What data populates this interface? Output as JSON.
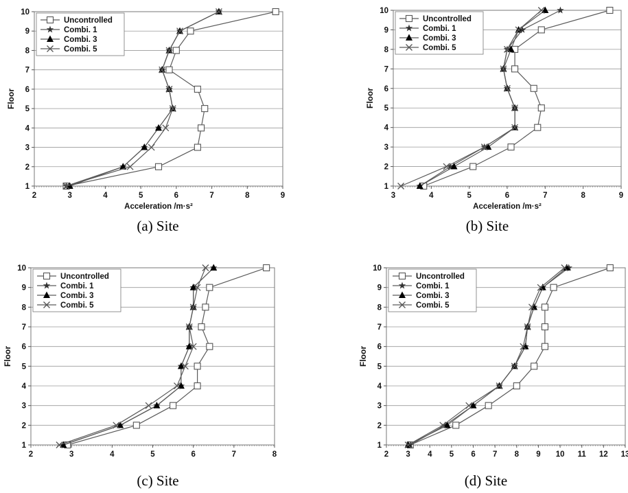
{
  "figure": {
    "captions": [
      "(a) Site",
      "(b) Site",
      "(c) Site",
      "(d) Site"
    ]
  },
  "chart_data": [
    {
      "type": "line",
      "xlabel": "Acceleration /m·s²",
      "ylabel": "Floor",
      "xlim": [
        2,
        9
      ],
      "ylim": [
        1,
        10
      ],
      "x_ticks": [
        2,
        3,
        4,
        5,
        6,
        7,
        8,
        9
      ],
      "y_ticks": [
        1,
        2,
        3,
        4,
        5,
        6,
        7,
        8,
        9,
        10
      ],
      "grid": "horizontal",
      "legend_position": "top-left",
      "series": [
        {
          "name": "Uncontrolled",
          "marker": "square",
          "x": [
            2.9,
            5.5,
            6.6,
            6.7,
            6.8,
            6.6,
            5.8,
            6.0,
            6.4,
            8.8
          ],
          "y": [
            1,
            2,
            3,
            4,
            5,
            6,
            7,
            8,
            9,
            10
          ]
        },
        {
          "name": "Combi. 1",
          "marker": "star",
          "x": [
            2.9,
            4.5,
            5.1,
            5.5,
            5.9,
            5.8,
            5.6,
            5.8,
            6.1,
            7.2
          ],
          "y": [
            1,
            2,
            3,
            4,
            5,
            6,
            7,
            8,
            9,
            10
          ]
        },
        {
          "name": "Combi. 3",
          "marker": "triangle",
          "x": [
            3.0,
            4.5,
            5.1,
            5.5,
            5.9,
            5.8,
            5.6,
            5.8,
            6.1,
            7.2
          ],
          "y": [
            1,
            2,
            3,
            4,
            5,
            6,
            7,
            8,
            9,
            10
          ]
        },
        {
          "name": "Combi. 5",
          "marker": "x",
          "x": [
            2.9,
            4.7,
            5.3,
            5.7,
            5.9,
            5.8,
            5.6,
            5.8,
            6.1,
            7.2
          ],
          "y": [
            1,
            2,
            3,
            4,
            5,
            6,
            7,
            8,
            9,
            10
          ]
        }
      ]
    },
    {
      "type": "line",
      "xlabel": "Acceleration /m·s²",
      "ylabel": "Floor",
      "xlim": [
        3,
        9
      ],
      "ylim": [
        1,
        10
      ],
      "x_ticks": [
        3,
        4,
        5,
        6,
        7,
        8,
        9
      ],
      "y_ticks": [
        1,
        2,
        3,
        4,
        5,
        6,
        7,
        8,
        9,
        10
      ],
      "grid": "horizontal",
      "legend_position": "top-left",
      "series": [
        {
          "name": "Uncontrolled",
          "marker": "square",
          "x": [
            3.8,
            5.1,
            6.1,
            6.8,
            6.9,
            6.7,
            6.2,
            6.2,
            6.9,
            8.7
          ],
          "y": [
            1,
            2,
            3,
            4,
            5,
            6,
            7,
            8,
            9,
            10
          ]
        },
        {
          "name": "Combi. 1",
          "marker": "star",
          "x": [
            3.7,
            4.5,
            5.4,
            6.2,
            6.2,
            6.0,
            5.9,
            6.0,
            6.4,
            7.4
          ],
          "y": [
            1,
            2,
            3,
            4,
            5,
            6,
            7,
            8,
            9,
            10
          ]
        },
        {
          "name": "Combi. 3",
          "marker": "triangle",
          "x": [
            3.7,
            4.6,
            5.5,
            6.2,
            6.2,
            6.0,
            5.9,
            6.1,
            6.3,
            7.0
          ],
          "y": [
            1,
            2,
            3,
            4,
            5,
            6,
            7,
            8,
            9,
            10
          ]
        },
        {
          "name": "Combi. 5",
          "marker": "x",
          "x": [
            3.2,
            4.4,
            5.4,
            6.2,
            6.2,
            6.0,
            5.9,
            6.0,
            6.3,
            6.9
          ],
          "y": [
            1,
            2,
            3,
            4,
            5,
            6,
            7,
            8,
            9,
            10
          ]
        }
      ]
    },
    {
      "type": "line",
      "xlabel": "Acceleration /m·s²",
      "ylabel": "Floor",
      "xlim": [
        2,
        8
      ],
      "ylim": [
        1,
        10
      ],
      "x_ticks": [
        2,
        3,
        4,
        5,
        6,
        7,
        8
      ],
      "y_ticks": [
        1,
        2,
        3,
        4,
        5,
        6,
        7,
        8,
        9,
        10
      ],
      "grid": "horizontal",
      "legend_position": "top-left",
      "series": [
        {
          "name": "Uncontrolled",
          "marker": "square",
          "x": [
            2.9,
            4.6,
            5.5,
            6.1,
            6.1,
            6.4,
            6.2,
            6.3,
            6.4,
            7.8
          ],
          "y": [
            1,
            2,
            3,
            4,
            5,
            6,
            7,
            8,
            9,
            10
          ]
        },
        {
          "name": "Combi. 1",
          "marker": "star",
          "x": [
            2.8,
            4.2,
            5.1,
            5.7,
            5.7,
            5.9,
            5.9,
            6.0,
            6.0,
            6.5
          ],
          "y": [
            1,
            2,
            3,
            4,
            5,
            6,
            7,
            8,
            9,
            10
          ]
        },
        {
          "name": "Combi. 3",
          "marker": "triangle",
          "x": [
            2.8,
            4.2,
            5.1,
            5.7,
            5.7,
            5.9,
            5.9,
            6.0,
            6.0,
            6.5
          ],
          "y": [
            1,
            2,
            3,
            4,
            5,
            6,
            7,
            8,
            9,
            10
          ]
        },
        {
          "name": "Combi. 5",
          "marker": "x",
          "x": [
            2.7,
            4.1,
            4.9,
            5.6,
            5.8,
            6.0,
            5.9,
            6.0,
            6.1,
            6.3
          ],
          "y": [
            1,
            2,
            3,
            4,
            5,
            6,
            7,
            8,
            9,
            10
          ]
        }
      ]
    },
    {
      "type": "line",
      "xlabel": "Acceleration /m·s²",
      "ylabel": "Floor",
      "xlim": [
        2,
        13
      ],
      "ylim": [
        1,
        10
      ],
      "x_ticks": [
        2,
        3,
        4,
        5,
        6,
        7,
        8,
        9,
        10,
        11,
        12,
        13
      ],
      "y_ticks": [
        1,
        2,
        3,
        4,
        5,
        6,
        7,
        8,
        9,
        10
      ],
      "grid": "horizontal",
      "legend_position": "top-left",
      "series": [
        {
          "name": "Uncontrolled",
          "marker": "square",
          "x": [
            3.1,
            5.2,
            6.7,
            8.0,
            8.8,
            9.3,
            9.3,
            9.3,
            9.7,
            12.3
          ],
          "y": [
            1,
            2,
            3,
            4,
            5,
            6,
            7,
            8,
            9,
            10
          ]
        },
        {
          "name": "Combi. 1",
          "marker": "star",
          "x": [
            3.1,
            4.7,
            6.0,
            7.2,
            7.9,
            8.4,
            8.5,
            8.8,
            9.2,
            10.4
          ],
          "y": [
            1,
            2,
            3,
            4,
            5,
            6,
            7,
            8,
            9,
            10
          ]
        },
        {
          "name": "Combi. 3",
          "marker": "triangle",
          "x": [
            3.0,
            4.8,
            6.0,
            7.2,
            7.9,
            8.4,
            8.5,
            8.8,
            9.2,
            10.3
          ],
          "y": [
            1,
            2,
            3,
            4,
            5,
            6,
            7,
            8,
            9,
            10
          ]
        },
        {
          "name": "Combi. 5",
          "marker": "x",
          "x": [
            3.0,
            4.6,
            5.8,
            7.2,
            7.9,
            8.3,
            8.5,
            8.7,
            9.1,
            10.2
          ],
          "y": [
            1,
            2,
            3,
            4,
            5,
            6,
            7,
            8,
            9,
            10
          ]
        }
      ]
    }
  ]
}
